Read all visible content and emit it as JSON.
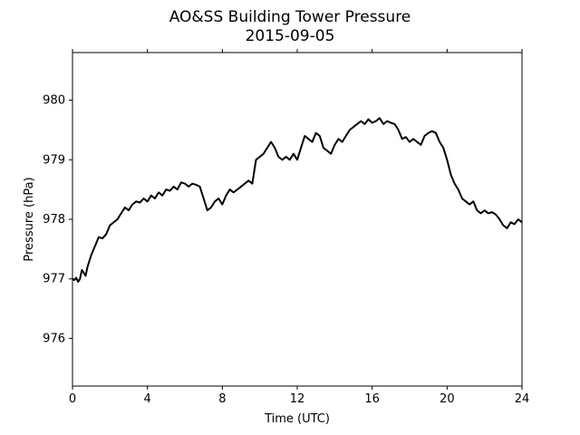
{
  "chart_data": {
    "type": "line",
    "title": "AO&SS Building Tower Pressure",
    "subtitle": "2015-09-05",
    "xlabel": "Time (UTC)",
    "ylabel": "Pressure (hPa)",
    "xlim": [
      0,
      24
    ],
    "ylim": [
      975.2,
      980.8
    ],
    "xticks": [
      0,
      4,
      8,
      12,
      16,
      20,
      24
    ],
    "yticks": [
      976,
      977,
      978,
      979,
      980
    ],
    "grid": false,
    "legend": "none",
    "series": [
      {
        "color": "#000000",
        "x": [
          0.0,
          0.1,
          0.2,
          0.3,
          0.4,
          0.5,
          0.6,
          0.7,
          0.8,
          1.0,
          1.2,
          1.4,
          1.6,
          1.8,
          2.0,
          2.2,
          2.4,
          2.6,
          2.8,
          3.0,
          3.2,
          3.4,
          3.6,
          3.8,
          4.0,
          4.2,
          4.4,
          4.6,
          4.8,
          5.0,
          5.2,
          5.4,
          5.6,
          5.8,
          6.0,
          6.2,
          6.4,
          6.6,
          6.8,
          7.0,
          7.2,
          7.4,
          7.6,
          7.8,
          8.0,
          8.2,
          8.4,
          8.6,
          8.8,
          9.0,
          9.2,
          9.4,
          9.6,
          9.8,
          10.0,
          10.2,
          10.4,
          10.6,
          10.8,
          11.0,
          11.2,
          11.4,
          11.6,
          11.8,
          12.0,
          12.2,
          12.4,
          12.6,
          12.8,
          13.0,
          13.2,
          13.4,
          13.6,
          13.8,
          14.0,
          14.2,
          14.4,
          14.6,
          14.8,
          15.0,
          15.2,
          15.4,
          15.6,
          15.8,
          16.0,
          16.2,
          16.4,
          16.6,
          16.8,
          17.0,
          17.2,
          17.4,
          17.6,
          17.8,
          18.0,
          18.2,
          18.4,
          18.6,
          18.8,
          19.0,
          19.2,
          19.4,
          19.6,
          19.8,
          20.0,
          20.2,
          20.4,
          20.6,
          20.8,
          21.0,
          21.2,
          21.4,
          21.6,
          21.8,
          22.0,
          22.2,
          22.4,
          22.6,
          22.8,
          23.0,
          23.2,
          23.4,
          23.6,
          23.8,
          24.0
        ],
        "values": [
          977.0,
          976.98,
          977.02,
          976.95,
          977.0,
          977.15,
          977.1,
          977.05,
          977.2,
          977.4,
          977.55,
          977.7,
          977.68,
          977.75,
          977.9,
          977.95,
          978.0,
          978.1,
          978.2,
          978.15,
          978.25,
          978.3,
          978.28,
          978.35,
          978.3,
          978.4,
          978.35,
          978.45,
          978.4,
          978.5,
          978.48,
          978.55,
          978.5,
          978.62,
          978.6,
          978.55,
          978.6,
          978.58,
          978.55,
          978.35,
          978.15,
          978.2,
          978.3,
          978.35,
          978.25,
          978.4,
          978.5,
          978.45,
          978.5,
          978.55,
          978.6,
          978.65,
          978.6,
          979.0,
          979.05,
          979.1,
          979.2,
          979.3,
          979.2,
          979.05,
          979.0,
          979.05,
          979.0,
          979.1,
          979.0,
          979.2,
          979.4,
          979.35,
          979.3,
          979.45,
          979.4,
          979.2,
          979.15,
          979.1,
          979.25,
          979.35,
          979.3,
          979.4,
          979.5,
          979.55,
          979.6,
          979.65,
          979.6,
          979.68,
          979.62,
          979.65,
          979.7,
          979.6,
          979.65,
          979.62,
          979.6,
          979.5,
          979.35,
          979.38,
          979.3,
          979.35,
          979.3,
          979.25,
          979.4,
          979.45,
          979.48,
          979.45,
          979.3,
          979.2,
          979.0,
          978.75,
          978.6,
          978.5,
          978.35,
          978.3,
          978.25,
          978.3,
          978.15,
          978.1,
          978.15,
          978.1,
          978.12,
          978.08,
          978.0,
          977.9,
          977.85,
          977.95,
          977.92,
          978.0,
          977.95
        ]
      }
    ]
  }
}
